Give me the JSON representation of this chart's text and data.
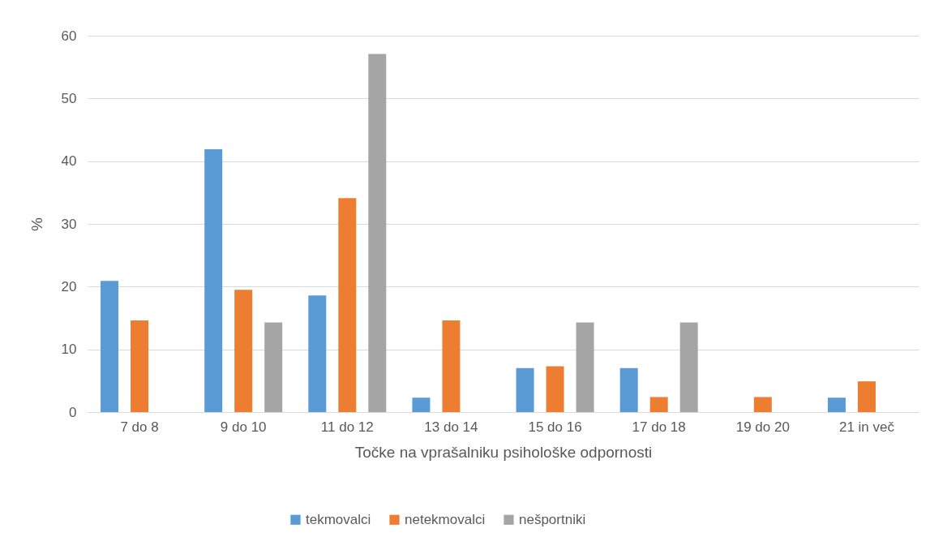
{
  "chart_data": {
    "type": "bar",
    "xlabel": "Točke na vprašalniku psihološke odpornosti",
    "ylabel": "%",
    "categories": [
      "7 do 8",
      "9 do 10",
      "11 do 12",
      "13 do 14",
      "15 do 16",
      "17 do 18",
      "19 do 20",
      "21 in več"
    ],
    "series": [
      {
        "name": "tekmovalci",
        "color": "#5b9bd5",
        "values": [
          20.9,
          41.9,
          18.6,
          2.3,
          7.0,
          7.0,
          0,
          2.3
        ]
      },
      {
        "name": "netekmovalci",
        "color": "#ed7d31",
        "values": [
          14.6,
          19.5,
          34.1,
          14.6,
          7.3,
          2.4,
          2.4,
          4.9
        ]
      },
      {
        "name": "nešportniki",
        "color": "#a5a5a5",
        "values": [
          0,
          14.3,
          57.1,
          0,
          14.3,
          14.3,
          0,
          0
        ]
      }
    ],
    "ylim": [
      0,
      60
    ],
    "yticks": [
      0,
      10,
      20,
      30,
      40,
      50,
      60
    ],
    "grid": "y",
    "legend": "bottom"
  }
}
